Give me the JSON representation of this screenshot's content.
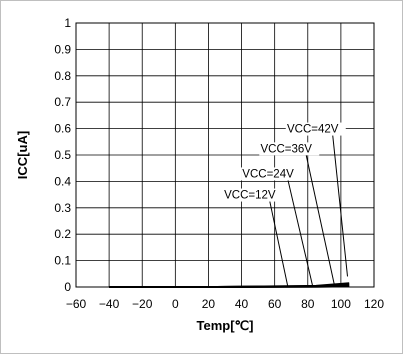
{
  "chart_data": {
    "type": "line",
    "xlabel": "Temp[℃]",
    "ylabel": "ICC[uA]",
    "xlim": [
      -60,
      120
    ],
    "ylim": [
      0,
      1
    ],
    "xticks": [
      -60,
      -40,
      -20,
      0,
      20,
      40,
      60,
      80,
      100,
      120
    ],
    "yticks": [
      0,
      0.1,
      0.2,
      0.3,
      0.4,
      0.5,
      0.6,
      0.7,
      0.8,
      0.9,
      1
    ],
    "x_tick_labels": [
      "−60",
      "−40",
      "−20",
      "0",
      "20",
      "40",
      "60",
      "80",
      "100",
      "120"
    ],
    "y_tick_labels": [
      "0",
      "0.1",
      "0.2",
      "0.3",
      "0.4",
      "0.5",
      "0.6",
      "0.7",
      "0.8",
      "0.9",
      "1"
    ],
    "grid": true,
    "series": [
      {
        "name": "VCC=12V",
        "x": [
          -40,
          25,
          85,
          105
        ],
        "y": [
          0,
          0,
          0.001,
          0.003
        ]
      },
      {
        "name": "VCC=24V",
        "x": [
          -40,
          25,
          85,
          105
        ],
        "y": [
          0,
          0,
          0.002,
          0.006
        ]
      },
      {
        "name": "VCC=36V",
        "x": [
          -40,
          25,
          85,
          105
        ],
        "y": [
          0,
          0,
          0.003,
          0.01
        ]
      },
      {
        "name": "VCC=42V",
        "x": [
          -40,
          25,
          85,
          105
        ],
        "y": [
          0,
          0,
          0.004,
          0.014
        ]
      }
    ],
    "annotations": [
      {
        "text": "VCC=12V",
        "series": "VCC=12V",
        "label_x": 45,
        "label_y": 0.335,
        "target_x": 68,
        "target_y": 0.0
      },
      {
        "text": "VCC=24V",
        "series": "VCC=24V",
        "label_x": 56,
        "label_y": 0.415,
        "target_x": 83,
        "target_y": 0.002
      },
      {
        "text": "VCC=36V",
        "series": "VCC=36V",
        "label_x": 67,
        "label_y": 0.51,
        "target_x": 96,
        "target_y": 0.01
      },
      {
        "text": "VCC=42V",
        "series": "VCC=42V",
        "label_x": 83,
        "label_y": 0.585,
        "target_x": 104,
        "target_y": 0.04
      }
    ]
  }
}
